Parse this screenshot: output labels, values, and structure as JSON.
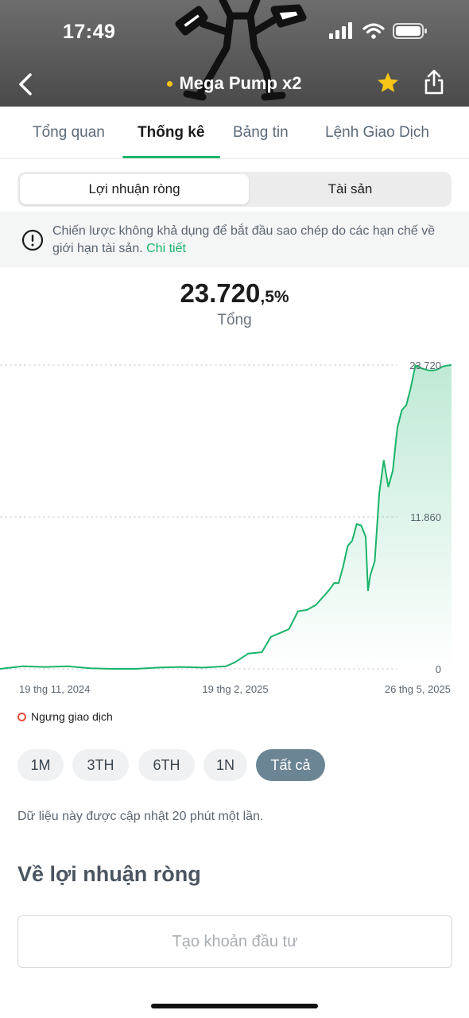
{
  "status_bar": {
    "time": "17:49"
  },
  "nav": {
    "title": "Mega Pump x2"
  },
  "tabs": [
    {
      "label": "Tổng quan"
    },
    {
      "label": "Thống kê"
    },
    {
      "label": "Bảng tin"
    },
    {
      "label": "Lệnh Giao Dịch"
    }
  ],
  "segment": {
    "left": "Lợi nhuận ròng",
    "right": "Tài sản"
  },
  "notice": {
    "text": "Chiến lược không khả dụng để bắt đầu sao chép do các hạn chế về giới hạn tài sản.",
    "link": "Chi tiết"
  },
  "summary": {
    "value": "23.720",
    "suffix": ",5%",
    "label": "Tổng"
  },
  "chart_data": {
    "type": "area",
    "y_ticks": [
      "23.720",
      "11.860",
      "0"
    ],
    "x_ticks": [
      "19 thg 11, 2024",
      "19 thg 2, 2025",
      "26 thg 5, 2025"
    ],
    "ylim": [
      0,
      23720
    ],
    "series_color": "#1bb36a",
    "x": [
      0,
      5,
      10,
      15,
      20,
      25,
      30,
      35,
      40,
      45,
      50,
      52,
      55,
      58,
      60,
      62,
      64,
      66,
      68,
      70,
      72,
      73,
      74,
      75,
      76,
      77,
      78,
      79,
      80,
      81,
      81.5,
      82,
      83,
      84,
      85,
      86,
      87,
      88,
      89,
      90,
      91,
      92,
      93,
      94,
      95,
      96,
      97,
      98,
      99,
      100
    ],
    "values": [
      0,
      200,
      150,
      200,
      50,
      0,
      0,
      100,
      150,
      100,
      200,
      500,
      1200,
      1300,
      2500,
      2800,
      3100,
      4500,
      4600,
      5000,
      5800,
      6200,
      6700,
      6700,
      8000,
      9600,
      10000,
      11300,
      11200,
      10300,
      6100,
      7300,
      8400,
      13700,
      16300,
      14200,
      15500,
      18800,
      20200,
      20600,
      22000,
      23700,
      23500,
      23400,
      23300,
      23300,
      23400,
      23600,
      23680,
      23720
    ]
  },
  "status": {
    "text": "Ngưng giao dịch"
  },
  "ranges": [
    {
      "label": "1M"
    },
    {
      "label": "3TH"
    },
    {
      "label": "6TH"
    },
    {
      "label": "1N"
    },
    {
      "label": "Tất cả"
    }
  ],
  "update_note": "Dữ liệu này được cập nhật 20 phút một lần.",
  "section_title": "Về lợi nhuận ròng",
  "invest_button": "Tạo khoản đầu tư"
}
